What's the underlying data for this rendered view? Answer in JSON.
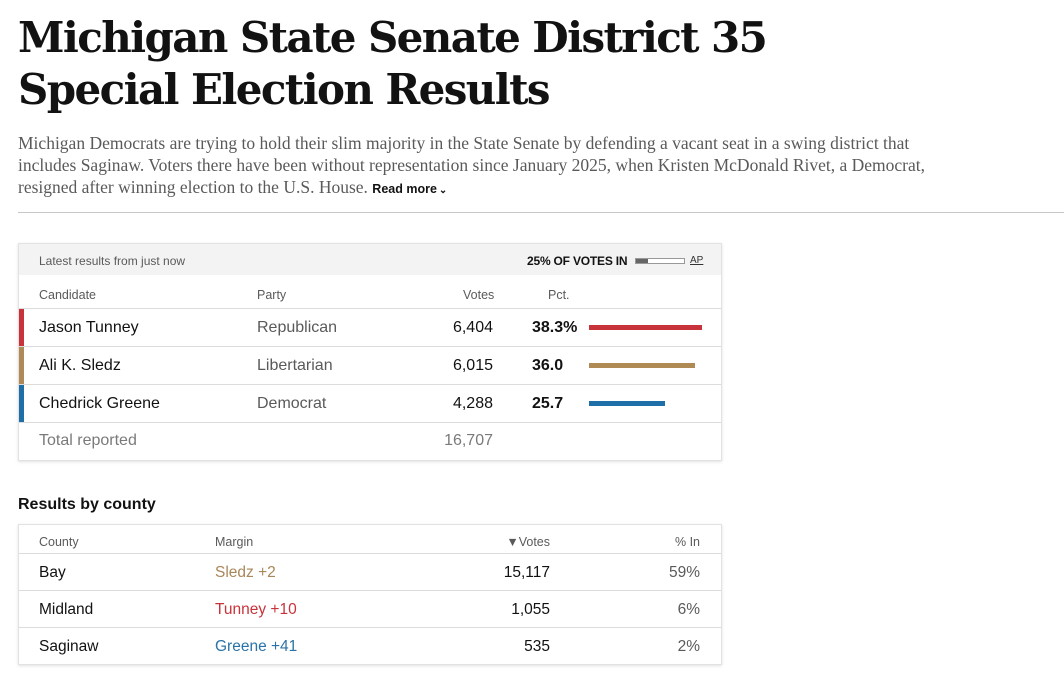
{
  "headline": "Michigan State Senate District 35 Special Election Results",
  "summary": "Michigan Democrats are trying to hold their slim majority in the State Senate by defending a vacant seat in a swing district that includes Saginaw. Voters there have been without representation since January 2025, when Kristen McDonald Rivet, a Democrat, resigned after winning election to the U.S. House.",
  "read_more_label": "Read more",
  "results": {
    "latest_label": "Latest results from just now",
    "votes_in_label": "25% OF VOTES IN",
    "votes_in_fraction": 0.25,
    "ap_label": "AP",
    "columns": {
      "candidate": "Candidate",
      "party": "Party",
      "votes": "Votes",
      "pct": "Pct."
    },
    "candidates": [
      {
        "name": "Jason Tunney",
        "party": "Republican",
        "votes": "6,404",
        "pct_label": "38.3%",
        "pct": 38.3,
        "color": "#c8333b"
      },
      {
        "name": "Ali K. Sledz",
        "party": "Libertarian",
        "votes": "6,015",
        "pct_label": "36.0",
        "pct": 36.0,
        "color": "#b08a55"
      },
      {
        "name": "Chedrick Greene",
        "party": "Democrat",
        "votes": "4,288",
        "pct_label": "25.7",
        "pct": 25.7,
        "color": "#1e6ea7"
      }
    ],
    "total_label": "Total reported",
    "total_votes": "16,707"
  },
  "county_section": {
    "title": "Results by county",
    "columns": {
      "county": "County",
      "margin": "Margin",
      "votes": "▼Votes",
      "pct_in": "% In"
    },
    "rows": [
      {
        "county": "Bay",
        "margin": "Sledz +2",
        "margin_color": "#a8875a",
        "votes": "15,117",
        "pct_in": "59%"
      },
      {
        "county": "Midland",
        "margin": "Tunney +10",
        "margin_color": "#c8333b",
        "votes": "1,055",
        "pct_in": "6%"
      },
      {
        "county": "Saginaw",
        "margin": "Greene +41",
        "margin_color": "#2a73a8",
        "votes": "535",
        "pct_in": "2%"
      }
    ]
  }
}
